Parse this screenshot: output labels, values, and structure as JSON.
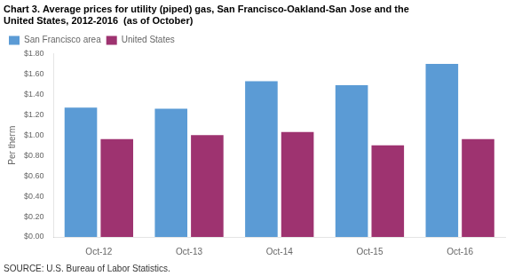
{
  "chart_data": {
    "type": "bar",
    "title": [
      "Chart 3. Average prices for utility (piped) gas, San Francisco-Oakland-San Jose and the",
      "United States, 2012-2016  (as of October)"
    ],
    "ylabel": "Per therm",
    "categories": [
      "Oct-12",
      "Oct-13",
      "Oct-14",
      "Oct-15",
      "Oct-16"
    ],
    "series": [
      {
        "name": "San Francisco area",
        "color": "#5B9BD5",
        "values": [
          1.27,
          1.26,
          1.53,
          1.49,
          1.7
        ]
      },
      {
        "name": "United States",
        "color": "#9E3370",
        "values": [
          0.96,
          1.0,
          1.03,
          0.9,
          0.96
        ]
      }
    ],
    "ylim": [
      0.0,
      1.8
    ],
    "yticks": [
      {
        "value": 0.0,
        "label": "$0.00"
      },
      {
        "value": 0.2,
        "label": "$0.20"
      },
      {
        "value": 0.4,
        "label": "$0.40"
      },
      {
        "value": 0.6,
        "label": "$0.60"
      },
      {
        "value": 0.8,
        "label": "$0.80"
      },
      {
        "value": 1.0,
        "label": "$1.00"
      },
      {
        "value": 1.2,
        "label": "$1.20"
      },
      {
        "value": 1.4,
        "label": "$1.40"
      },
      {
        "value": 1.6,
        "label": "$1.60"
      },
      {
        "value": 1.8,
        "label": "$1.80"
      }
    ],
    "annotations": [
      "SOURCE: U.S. Bureau of Labor Statistics."
    ],
    "legend": "upper left",
    "grid": false
  }
}
